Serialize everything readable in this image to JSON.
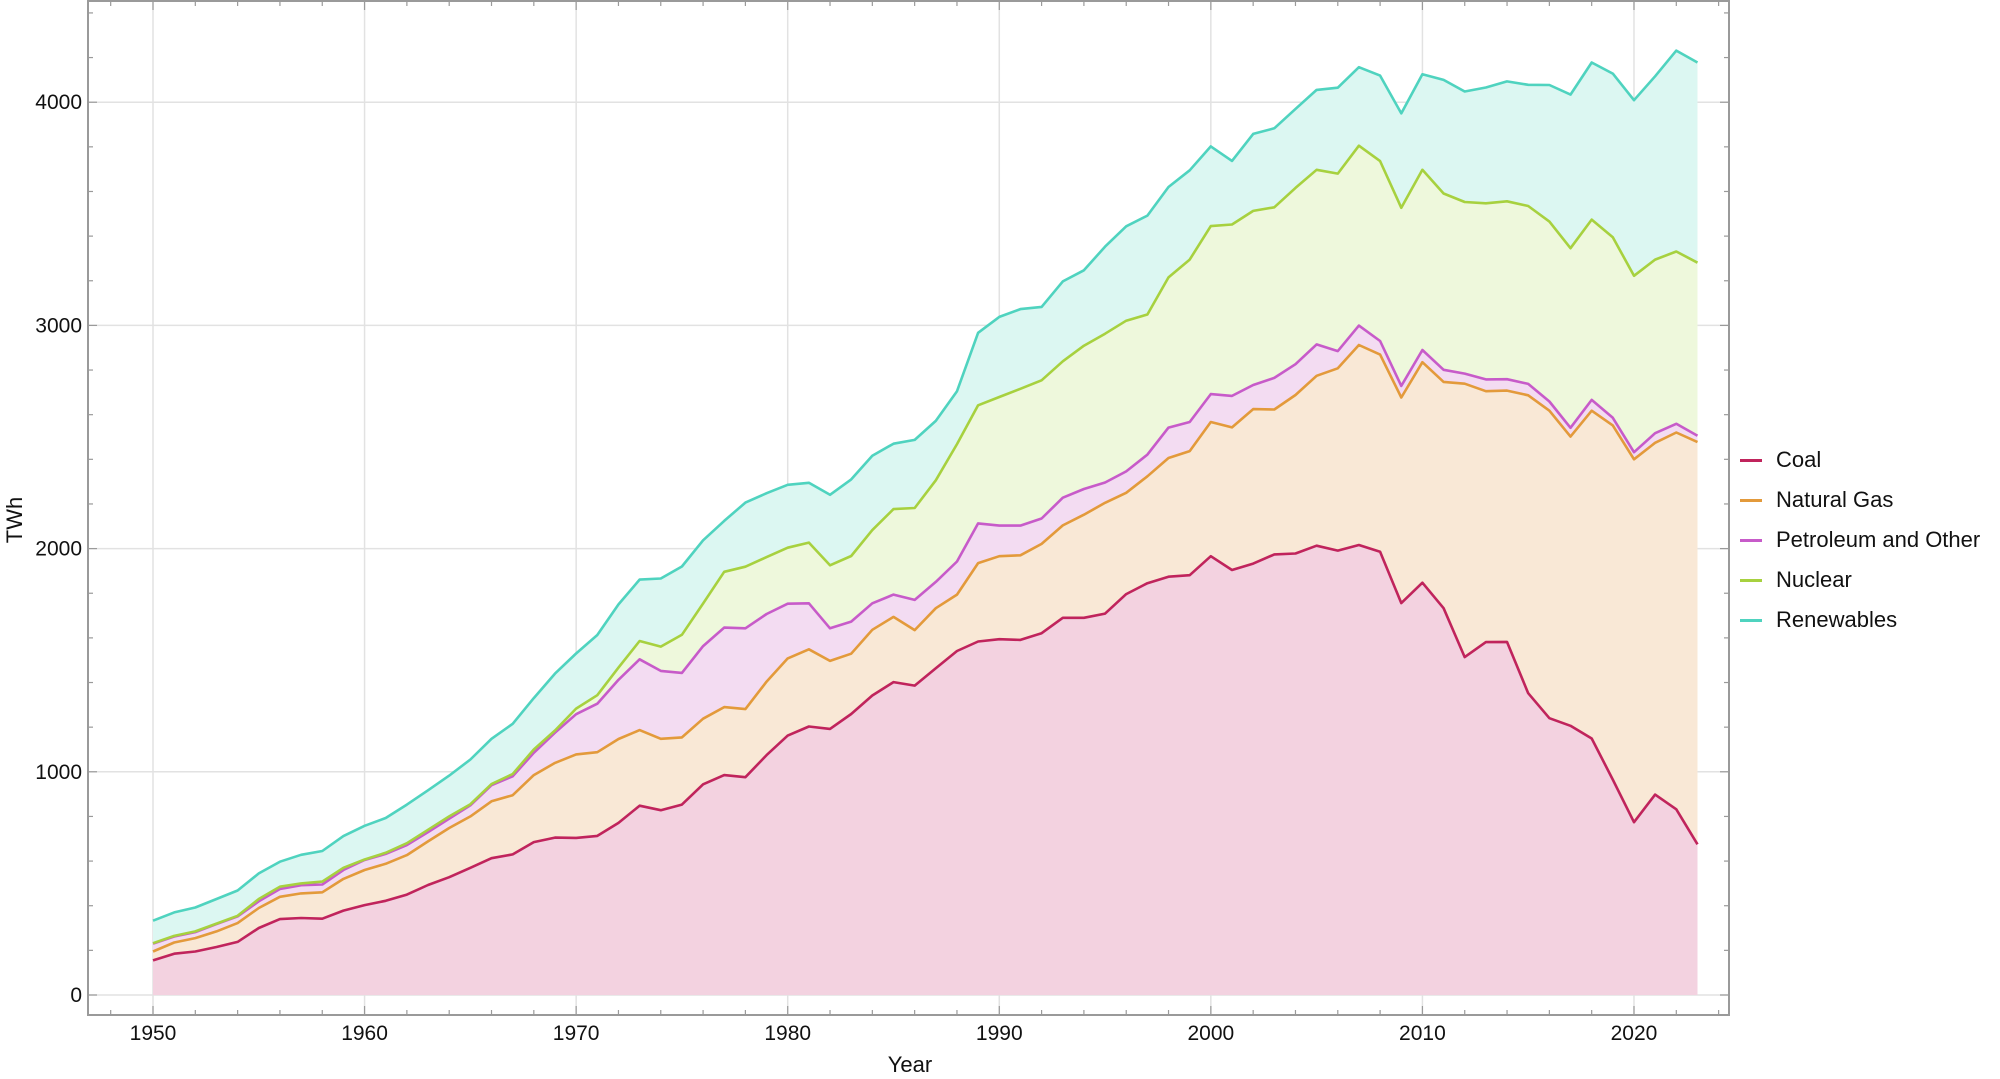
{
  "chart_data": {
    "type": "area",
    "stacked": true,
    "title": "",
    "xlabel": "Year",
    "ylabel": "TWh",
    "xlim": [
      1947,
      2025
    ],
    "ylim": [
      -110,
      4470
    ],
    "x_ticks": [
      1950,
      1960,
      1970,
      1980,
      1990,
      2000,
      2010,
      2020
    ],
    "y_ticks": [
      0,
      1000,
      2000,
      3000,
      4000
    ],
    "grid": true,
    "legend_position": "right",
    "x": [
      1950,
      1951,
      1952,
      1953,
      1954,
      1955,
      1956,
      1957,
      1958,
      1959,
      1960,
      1961,
      1962,
      1963,
      1964,
      1965,
      1966,
      1967,
      1968,
      1969,
      1970,
      1971,
      1972,
      1973,
      1974,
      1975,
      1976,
      1977,
      1978,
      1979,
      1980,
      1981,
      1982,
      1983,
      1984,
      1985,
      1986,
      1987,
      1988,
      1989,
      1990,
      1991,
      1992,
      1993,
      1994,
      1995,
      1996,
      1997,
      1998,
      1999,
      2000,
      2001,
      2002,
      2003,
      2004,
      2005,
      2006,
      2007,
      2008,
      2009,
      2010,
      2011,
      2012,
      2013,
      2014,
      2015,
      2016,
      2017,
      2018,
      2019,
      2020,
      2021,
      2022,
      2023
    ],
    "series": [
      {
        "name": "Coal",
        "color": "#c0245c",
        "fill": "#f3d2e0",
        "values": [
          155,
          185,
          195,
          215,
          238,
          300,
          340,
          345,
          342,
          378,
          403,
          422,
          450,
          493,
          528,
          570,
          613,
          630,
          685,
          705,
          704,
          713,
          771,
          848,
          828,
          853,
          944,
          985,
          976,
          1075,
          1162,
          1203,
          1192,
          1259,
          1342,
          1402,
          1386,
          1464,
          1541,
          1584,
          1594,
          1591,
          1621,
          1690,
          1690,
          1709,
          1796,
          1845,
          1874,
          1881,
          1966,
          1904,
          1933,
          1974,
          1978,
          2013,
          1991,
          2016,
          1986,
          1756,
          1847,
          1733,
          1514,
          1581,
          1582,
          1352,
          1240,
          1206,
          1149,
          965,
          774,
          898,
          832,
          675
        ]
      },
      {
        "name": "Natural Gas",
        "color": "#e39a3b",
        "fill": "#f9e8d6",
        "values": [
          40,
          50,
          60,
          70,
          84,
          90,
          100,
          110,
          118,
          142,
          157,
          166,
          177,
          195,
          220,
          230,
          255,
          265,
          300,
          335,
          374,
          375,
          376,
          339,
          320,
          301,
          294,
          305,
          305,
          329,
          346,
          346,
          305,
          270,
          294,
          292,
          249,
          269,
          253,
          351,
          372,
          379,
          400,
          414,
          462,
          496,
          454,
          479,
          532,
          556,
          601,
          639,
          692,
          649,
          710,
          761,
          817,
          896,
          883,
          921,
          988,
          1014,
          1225,
          1124,
          1126,
          1335,
          1378,
          1296,
          1469,
          1587,
          1626,
          1576,
          1688,
          1802
        ]
      },
      {
        "name": "Petroleum and Other",
        "color": "#c75bc9",
        "fill": "#f3dcf2",
        "values": [
          35,
          27,
          27,
          33,
          30,
          30,
          35,
          37,
          35,
          40,
          45,
          44,
          45,
          42,
          42,
          50,
          72,
          85,
          100,
          135,
          180,
          217,
          265,
          317,
          304,
          289,
          325,
          356,
          362,
          303,
          245,
          206,
          146,
          144,
          119,
          100,
          135,
          118,
          148,
          178,
          137,
          133,
          114,
          124,
          115,
          91,
          96,
          97,
          136,
          130,
          125,
          141,
          108,
          142,
          138,
          141,
          77,
          87,
          61,
          52,
          55,
          54,
          45,
          53,
          51,
          51,
          41,
          39,
          48,
          34,
          32,
          43,
          39,
          29
        ]
      },
      {
        "name": "Nuclear",
        "color": "#a7d13f",
        "fill": "#eef8dc",
        "values": [
          2,
          3,
          3,
          2,
          3,
          10,
          10,
          8,
          13,
          10,
          2,
          5,
          8,
          10,
          10,
          5,
          5,
          10,
          15,
          10,
          25,
          38,
          55,
          82,
          109,
          171,
          191,
          250,
          276,
          255,
          251,
          272,
          282,
          294,
          328,
          383,
          412,
          455,
          526,
          529,
          576,
          613,
          619,
          611,
          642,
          667,
          675,
          628,
          673,
          728,
          753,
          768,
          780,
          764,
          790,
          782,
          795,
          806,
          806,
          798,
          807,
          790,
          769,
          789,
          797,
          797,
          806,
          805,
          808,
          809,
          790,
          778,
          772,
          775
        ]
      },
      {
        "name": "Renewables",
        "color": "#4fd3bf",
        "fill": "#dcf7f2",
        "values": [
          101,
          105,
          107,
          110,
          113,
          115,
          112,
          128,
          137,
          142,
          151,
          156,
          173,
          177,
          183,
          200,
          203,
          225,
          230,
          255,
          247,
          270,
          283,
          275,
          305,
          306,
          283,
          228,
          287,
          286,
          282,
          268,
          316,
          343,
          333,
          293,
          305,
          266,
          237,
          325,
          359,
          357,
          329,
          358,
          338,
          390,
          423,
          443,
          405,
          400,
          357,
          285,
          345,
          354,
          354,
          358,
          385,
          352,
          383,
          423,
          428,
          509,
          495,
          519,
          537,
          543,
          612,
          688,
          704,
          733,
          787,
          821,
          900,
          897
        ]
      }
    ]
  },
  "legend": {
    "items": [
      {
        "label": "Coal",
        "color": "#c0245c"
      },
      {
        "label": "Natural Gas",
        "color": "#e39a3b"
      },
      {
        "label": "Petroleum and Other",
        "color": "#c75bc9"
      },
      {
        "label": "Nuclear",
        "color": "#a7d13f"
      },
      {
        "label": "Renewables",
        "color": "#4fd3bf"
      }
    ]
  },
  "axes": {
    "x_title": "Year",
    "y_title": "TWh"
  },
  "colors": {
    "frame": "#9a9a9a",
    "grid": "#e2e2e2"
  }
}
